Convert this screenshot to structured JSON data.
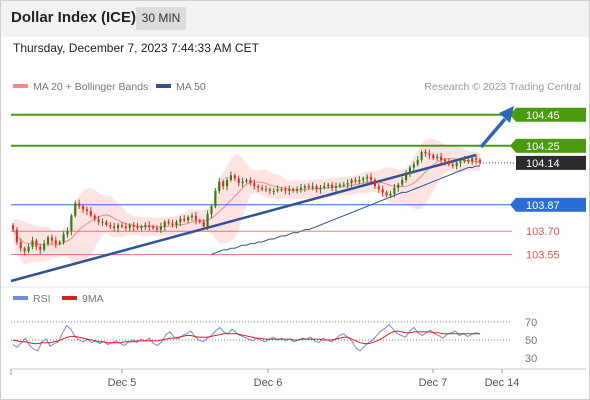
{
  "header": {
    "title": "Dollar Index (ICE)",
    "interval": "30 MIN"
  },
  "timestamp": "Thursday, December 7, 2023 7:44:33 AM CET",
  "colors": {
    "support": "#e05252",
    "resistance": "#4a9a10",
    "pivot": "#2a6fd6",
    "trendline": "#2f5396",
    "arrow": "#2f67b5",
    "candle_up": "#2e7d1a",
    "candle_down": "#d93025",
    "ma20": "#f28b82",
    "bollinger_fill": "#fde3e1",
    "ma50": "#2f5396",
    "rsi": "#6a8fdc",
    "rsi_ma": "#e02020"
  },
  "main_panel": {
    "legend": [
      {
        "label": "MA 20 + Bollinger Bands",
        "color": "#f28b82"
      },
      {
        "label": "MA 50",
        "color": "#2f5396"
      }
    ],
    "credit": "Research © 2023 Trading Central"
  },
  "rsi_panel": {
    "legend": [
      {
        "label": "RSI",
        "color": "#6a8fdc"
      },
      {
        "label": "9MA",
        "color": "#e02020"
      }
    ],
    "levels": [
      "70",
      "50",
      "30"
    ]
  },
  "chart_data": {
    "type": "candlestick",
    "ylim": [
      103.42,
      104.56
    ],
    "levels": [
      {
        "value": 104.45,
        "label": "104.45",
        "kind": "resistance"
      },
      {
        "value": 104.25,
        "label": "104.25",
        "kind": "resistance"
      },
      {
        "value": 104.14,
        "label": "104.14",
        "kind": "current"
      },
      {
        "value": 103.87,
        "label": "103.87",
        "kind": "pivot"
      },
      {
        "value": 103.7,
        "label": "103.70",
        "kind": "support"
      },
      {
        "value": 103.55,
        "label": "103.55",
        "kind": "support"
      }
    ],
    "x_ticks": [
      "Dec 5",
      "Dec 6",
      "Dec 7",
      "Dec 14"
    ],
    "closes": [
      103.71,
      103.63,
      103.59,
      103.57,
      103.6,
      103.64,
      103.6,
      103.58,
      103.62,
      103.66,
      103.64,
      103.62,
      103.63,
      103.68,
      103.7,
      103.8,
      103.88,
      103.86,
      103.84,
      103.83,
      103.8,
      103.78,
      103.76,
      103.76,
      103.74,
      103.73,
      103.72,
      103.74,
      103.73,
      103.72,
      103.74,
      103.73,
      103.72,
      103.73,
      103.74,
      103.73,
      103.72,
      103.71,
      103.73,
      103.76,
      103.75,
      103.74,
      103.76,
      103.78,
      103.77,
      103.79,
      103.8,
      103.77,
      103.76,
      103.73,
      103.81,
      103.86,
      103.96,
      104.02,
      103.99,
      104.03,
      104.06,
      104.04,
      104.01,
      104.02,
      104.03,
      104.01,
      103.99,
      103.98,
      103.97,
      103.97,
      103.96,
      103.96,
      103.97,
      103.97,
      103.96,
      103.97,
      103.96,
      103.97,
      103.98,
      103.99,
      103.98,
      103.99,
      103.97,
      103.98,
      103.99,
      104.0,
      103.98,
      103.99,
      104.0,
      104.0,
      104.01,
      104.03,
      104.02,
      104.03,
      104.04,
      104.05,
      104.03,
      103.99,
      103.97,
      103.95,
      103.93,
      103.94,
      103.98,
      104.0,
      104.03,
      104.07,
      104.11,
      104.13,
      104.16,
      104.21,
      104.2,
      104.19,
      104.17,
      104.18,
      104.16,
      104.15,
      104.13,
      104.12,
      104.14,
      104.15,
      104.16,
      104.15,
      104.17,
      104.16,
      104.14
    ],
    "ma50": [
      103.55,
      103.56,
      103.57,
      103.58,
      103.58,
      103.59,
      103.59,
      103.6,
      103.61,
      103.61,
      103.62,
      103.62,
      103.63,
      103.63,
      103.64,
      103.65,
      103.65,
      103.66,
      103.67,
      103.67,
      103.68,
      103.69,
      103.69,
      103.7,
      103.71,
      103.71,
      103.72,
      103.73,
      103.74,
      103.75,
      103.76,
      103.77,
      103.78,
      103.79,
      103.8,
      103.81,
      103.82,
      103.83,
      103.84,
      103.85,
      103.86,
      103.87,
      103.88,
      103.89,
      103.9,
      103.91,
      103.92,
      103.93,
      103.94,
      103.95,
      103.95,
      103.96,
      103.97,
      103.98,
      103.99,
      104.0,
      104.01,
      104.02,
      104.03,
      104.04,
      104.05,
      104.06,
      104.07,
      104.08,
      104.09,
      104.1,
      104.11,
      104.11,
      104.12,
      104.12
    ]
  },
  "rsi_data": {
    "rsi": [
      45,
      42,
      47,
      52,
      44,
      40,
      38,
      48,
      51,
      43,
      46,
      48,
      58,
      66,
      62,
      54,
      50,
      48,
      51,
      47,
      49,
      46,
      48,
      45,
      47,
      49,
      46,
      44,
      48,
      50,
      47,
      51,
      49,
      52,
      46,
      44,
      48,
      56,
      59,
      53,
      51,
      55,
      57,
      60,
      54,
      50,
      48,
      52,
      55,
      60,
      64,
      59,
      57,
      62,
      58,
      55,
      53,
      51,
      49,
      52,
      50,
      48,
      51,
      53,
      50,
      52,
      49,
      51,
      48,
      50,
      52,
      51,
      53,
      49,
      47,
      52,
      50,
      48,
      51,
      55,
      57,
      53,
      49,
      41,
      38,
      43,
      47,
      50,
      55,
      60,
      63,
      67,
      62,
      57,
      55,
      53,
      60,
      64,
      58,
      55,
      58,
      61,
      57,
      55,
      52,
      56,
      58,
      60,
      55,
      57,
      54,
      56,
      58,
      57
    ],
    "ma": [
      50,
      49,
      48,
      48,
      47,
      46,
      46,
      47,
      47,
      47,
      48,
      49,
      51,
      53,
      54,
      54,
      53,
      52,
      51,
      50,
      49,
      48,
      48,
      47,
      47,
      47,
      47,
      48,
      48,
      48,
      49,
      49,
      49,
      49,
      49,
      49,
      50,
      51,
      52,
      52,
      53,
      54,
      55,
      55,
      54,
      53,
      53,
      53,
      54,
      55,
      56,
      57,
      57,
      57,
      57,
      56,
      55,
      54,
      53,
      52,
      52,
      51,
      51,
      51,
      51,
      51,
      51,
      51,
      50,
      50,
      51,
      51,
      51,
      51,
      51,
      50,
      50,
      50,
      51,
      52,
      53,
      53,
      51,
      49,
      47,
      46,
      46,
      47,
      49,
      51,
      54,
      57,
      59,
      60,
      59,
      58,
      58,
      59,
      59,
      59,
      59,
      59,
      58,
      58,
      57,
      57,
      57,
      57,
      57,
      57,
      57,
      57,
      57,
      57
    ]
  }
}
